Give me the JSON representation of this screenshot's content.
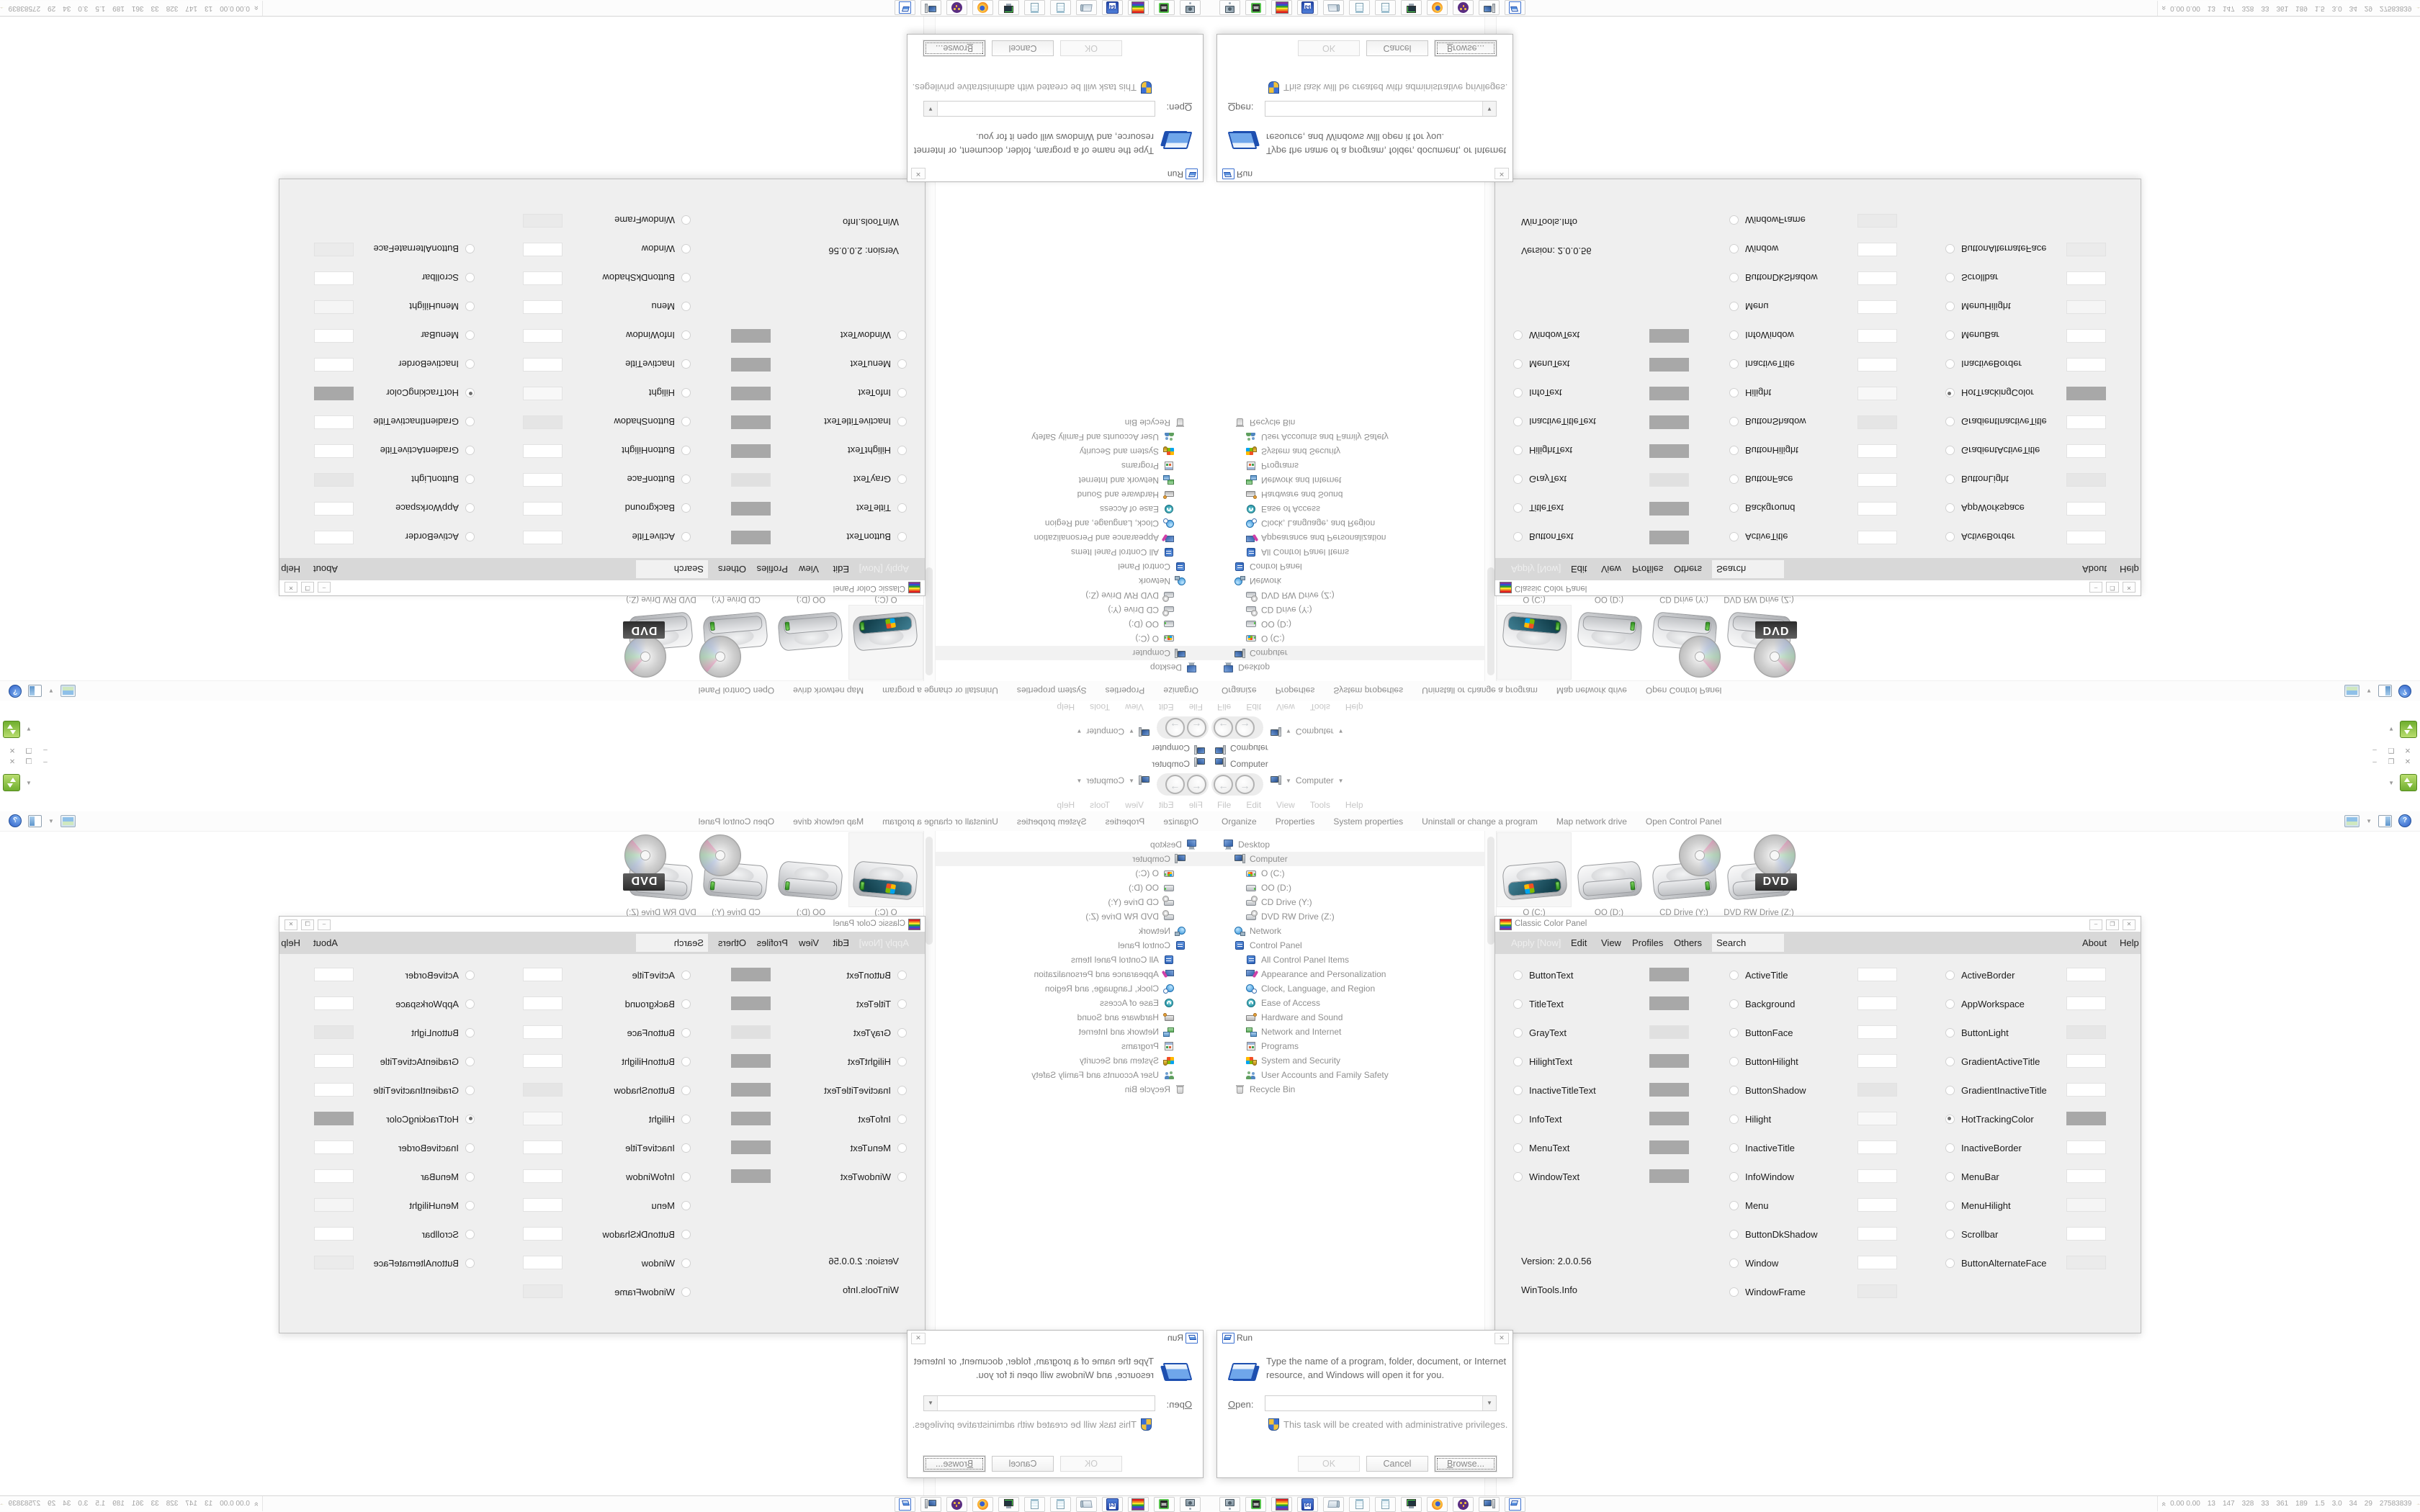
{
  "explorer": {
    "title": "Computer",
    "breadcrumb": {
      "location": "Computer"
    },
    "menu": [
      "File",
      "Edit",
      "View",
      "Tools",
      "Help"
    ],
    "toolbar": [
      "Organize",
      "Properties",
      "System properties",
      "Uninstall or change a program",
      "Map network drive",
      "Open Control Panel"
    ],
    "tree": [
      {
        "label": "Desktop",
        "icon": "desktop-icon",
        "cls": "ic-desktop",
        "indent": 0
      },
      {
        "label": "Computer",
        "icon": "computer-icon",
        "cls": "ic-computer",
        "indent": 1,
        "selected": true
      },
      {
        "label": "O (C:)",
        "icon": "hdd-windows-icon",
        "cls": "ic-hdd-win",
        "indent": 2
      },
      {
        "label": "OO (D:)",
        "icon": "hdd-icon",
        "cls": "ic-hdd",
        "indent": 2
      },
      {
        "label": "CD Drive (Y:)",
        "icon": "cd-drive-icon",
        "cls": "ic-cd",
        "indent": 2
      },
      {
        "label": "DVD RW Drive (Z:)",
        "icon": "dvd-drive-icon",
        "cls": "ic-cd",
        "indent": 2
      },
      {
        "label": "Network",
        "icon": "network-icon",
        "cls": "ic-network",
        "indent": 1
      },
      {
        "label": "Control Panel",
        "icon": "control-panel-icon",
        "cls": "ic-cpanel",
        "indent": 1
      },
      {
        "label": "All Control Panel Items",
        "icon": "control-panel-items-icon",
        "cls": "ic-cpanel",
        "indent": 2
      },
      {
        "label": "Appearance and Personalization",
        "icon": "appearance-icon",
        "cls": "ic-appearance",
        "indent": 2
      },
      {
        "label": "Clock, Language, and Region",
        "icon": "clock-region-icon",
        "cls": "ic-clock",
        "indent": 2
      },
      {
        "label": "Ease of Access",
        "icon": "ease-of-access-icon",
        "cls": "ic-ease",
        "indent": 2
      },
      {
        "label": "Hardware and Sound",
        "icon": "hardware-sound-icon",
        "cls": "ic-hw",
        "indent": 2
      },
      {
        "label": "Network and Internet",
        "icon": "network-internet-icon",
        "cls": "ic-netinet",
        "indent": 2
      },
      {
        "label": "Programs",
        "icon": "programs-icon",
        "cls": "ic-programs",
        "indent": 2
      },
      {
        "label": "System and Security",
        "icon": "system-security-icon",
        "cls": "ic-syssec",
        "indent": 2
      },
      {
        "label": "User Accounts and Family Safety",
        "icon": "user-accounts-icon",
        "cls": "ic-users",
        "indent": 2
      },
      {
        "label": "Recycle Bin",
        "icon": "recycle-bin-icon",
        "cls": "ic-recycle",
        "indent": 1
      }
    ],
    "drives": [
      {
        "label": "O (C:)",
        "icon": "hdd-windows-drive-icon",
        "type": "win",
        "selected": true
      },
      {
        "label": "OO (D:)",
        "icon": "hdd-drive-icon",
        "type": "plain"
      },
      {
        "label": "CD Drive (Y:)",
        "icon": "cd-disc-drive-icon",
        "type": "cd"
      },
      {
        "label": "DVD RW Drive (Z:)",
        "icon": "dvd-disc-drive-icon",
        "type": "dvd"
      }
    ],
    "dvd_badge": "DVD"
  },
  "ccp": {
    "title": "Classic Color Panel",
    "menu_apply": "Apply [Now]",
    "menu_items": [
      "Edit",
      "View",
      "Profiles",
      "Others"
    ],
    "search_label": "Search",
    "menu_right": [
      "About",
      "Help"
    ],
    "selected_option": "HotTrackingColor",
    "version": "Version: 2.0.0.56",
    "footer": "WinTools.Info",
    "columns": [
      [
        {
          "name": "ButtonText",
          "color": "#a8a8a8"
        },
        {
          "name": "TitleText",
          "color": "#a8a8a8"
        },
        {
          "name": "GrayText",
          "color": "#e0e0e0"
        },
        {
          "name": "HilightText",
          "color": "#a8a8a8"
        },
        {
          "name": "InactiveTitleText",
          "color": "#a8a8a8"
        },
        {
          "name": "InfoText",
          "color": "#a8a8a8"
        },
        {
          "name": "MenuText",
          "color": "#a8a8a8"
        },
        {
          "name": "WindowText",
          "color": "#a8a8a8"
        }
      ],
      [
        {
          "name": "ActiveTitle",
          "color": "#ffffff"
        },
        {
          "name": "Background",
          "color": "#ffffff"
        },
        {
          "name": "ButtonFace",
          "color": "#ffffff"
        },
        {
          "name": "ButtonHilight",
          "color": "#ffffff"
        },
        {
          "name": "ButtonShadow",
          "color": "#e5e5e5"
        },
        {
          "name": "Hilight",
          "color": "#f8f8f8"
        },
        {
          "name": "InactiveTitle",
          "color": "#ffffff"
        },
        {
          "name": "InfoWindow",
          "color": "#ffffff"
        },
        {
          "name": "Menu",
          "color": "#ffffff"
        },
        {
          "name": "ButtonDkShadow",
          "color": "#ffffff"
        },
        {
          "name": "Window",
          "color": "#ffffff"
        },
        {
          "name": "WindowFrame",
          "color": "#eaeaea"
        }
      ],
      [
        {
          "name": "ActiveBorder",
          "color": "#ffffff"
        },
        {
          "name": "AppWorkspace",
          "color": "#ffffff"
        },
        {
          "name": "ButtonLight",
          "color": "#e6e6e6"
        },
        {
          "name": "GradientActiveTitle",
          "color": "#ffffff"
        },
        {
          "name": "GradientInactiveTitle",
          "color": "#ffffff"
        },
        {
          "name": "HotTrackingColor",
          "color": "#a8a8a8",
          "selected": true
        },
        {
          "name": "InactiveBorder",
          "color": "#ffffff"
        },
        {
          "name": "MenuBar",
          "color": "#ffffff"
        },
        {
          "name": "MenuHilight",
          "color": "#f5f5f5"
        },
        {
          "name": "Scrollbar",
          "color": "#ffffff"
        },
        {
          "name": "ButtonAlternateFace",
          "color": "#ebebeb"
        }
      ]
    ]
  },
  "run": {
    "title": "Run",
    "message_line1": "Type the name of a program, folder, document, or Internet",
    "message_line2": "resource, and Windows will open it for you.",
    "open_label": "pen:",
    "open_access_key": "O",
    "open_value": "",
    "admin_note": "This task will be created with administrative privileges.",
    "buttons": {
      "ok": "OK",
      "cancel": "Cancel",
      "browse_access_key": "B",
      "browse": "rowse..."
    }
  },
  "taskbar": {
    "icons": [
      {
        "name": "pc-gear-icon",
        "cls": "ic-pc-gear"
      },
      {
        "name": "device-green-icon",
        "cls": "ic-device-green"
      },
      {
        "name": "rainbow-color-panel-icon",
        "cls": "ic-rainbow"
      },
      {
        "name": "floppy-64-icon",
        "cls": "ic-floppy64",
        "text": "64"
      },
      {
        "name": "scroll-script-icon",
        "cls": "ic-scroll"
      },
      {
        "name": "notepad-icon",
        "cls": "ic-notepad"
      },
      {
        "name": "notepad-icon-2",
        "cls": "ic-notepad"
      },
      {
        "name": "terminal-pc-icon",
        "cls": "ic-terminal"
      },
      {
        "name": "firefox-icon",
        "cls": "ic-firefox"
      },
      {
        "name": "owl-icon",
        "cls": "ic-owl"
      },
      {
        "name": "pc-blue-icon",
        "cls": "ic-pc-blue"
      },
      {
        "name": "run-icon",
        "cls": "ic-run"
      }
    ],
    "tray": {
      "expand_icon": "chevron-up-icon",
      "numbers": [
        "0.00 0.00",
        "13",
        "147",
        "328",
        "33",
        "361",
        "189",
        "1.5",
        "3.0",
        "34",
        "29",
        "27583839"
      ]
    }
  }
}
